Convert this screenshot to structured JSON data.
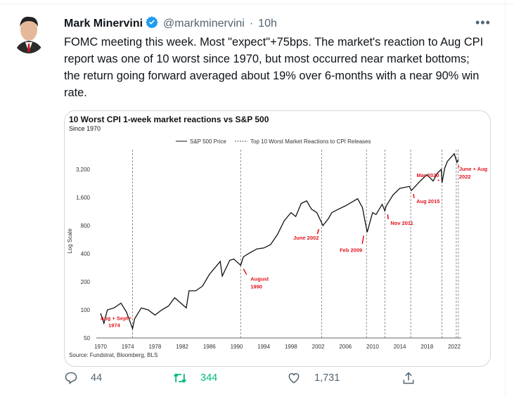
{
  "tweet": {
    "author_name": "Mark Minervini",
    "handle": "@markminervini",
    "separator": "·",
    "time": "10h",
    "more_icon": "ellipsis-icon",
    "text": "FOMC meeting this week. Most \"expect\"+75bps. The market's reaction to Aug CPI report was one of 10 worst since 1970, but most occurred near market bottoms; the return going forward averaged about 19% over 6-months with a near 90% win rate.",
    "verified": true
  },
  "actions": {
    "replies": "44",
    "retweets": "344",
    "likes": "1,731",
    "retweet_color": "#00ba7c"
  },
  "chart_data": {
    "type": "line",
    "title": "10 Worst CPI 1-week market reactions vs S&P 500",
    "subtitle": "Since 1970",
    "ylabel": "Log Scale",
    "source": "Source: Fundstrat, Bloomberg, BLS",
    "legend": [
      "S&P 500 Price",
      "Top 10 Worst Market Reactions to CPI Releases"
    ],
    "legend_position": "top",
    "x_ticks": [
      "1970",
      "1974",
      "1978",
      "1982",
      "1986",
      "1990",
      "1994",
      "1998",
      "2002",
      "2006",
      "2010",
      "2014",
      "2018",
      "2022"
    ],
    "y_ticks": [
      {
        "value": 50,
        "label": "50"
      },
      {
        "value": 100,
        "label": "100"
      },
      {
        "value": 200,
        "label": "200"
      },
      {
        "value": 400,
        "label": "400"
      },
      {
        "value": 800,
        "label": "800"
      },
      {
        "value": 1600,
        "label": "1,600"
      },
      {
        "value": 3200,
        "label": "3,200"
      }
    ],
    "xlim": [
      1970,
      2023.5
    ],
    "ylim": [
      50,
      5200
    ],
    "series": [
      {
        "name": "S&P 500 Price",
        "x": [
          1970,
          1970.5,
          1971,
          1972,
          1973,
          1973.8,
          1974.7,
          1975,
          1976,
          1977,
          1978,
          1979,
          1980,
          1980.9,
          1982.6,
          1983,
          1984,
          1985,
          1986,
          1987.6,
          1987.9,
          1989,
          1989.6,
          1990.6,
          1991,
          1992,
          1993,
          1994,
          1995,
          1996,
          1997,
          1998,
          1998.7,
          1999.5,
          2000.3,
          2001,
          2001.8,
          2002.7,
          2003.5,
          2004,
          2005,
          2006,
          2007.8,
          2008.5,
          2009.2,
          2010,
          2010.5,
          2011.4,
          2011.8,
          2012,
          2013,
          2014,
          2015.4,
          2015.7,
          2016,
          2017,
          2018,
          2018.9,
          2019.5,
          2020.1,
          2020.2,
          2020.6,
          2021,
          2022,
          2022.4,
          2022.6
        ],
        "y": [
          92,
          72,
          100,
          105,
          118,
          95,
          63,
          80,
          105,
          100,
          88,
          100,
          110,
          135,
          105,
          160,
          160,
          180,
          240,
          330,
          230,
          340,
          350,
          300,
          370,
          410,
          450,
          460,
          500,
          640,
          900,
          1100,
          1000,
          1380,
          1470,
          1200,
          1100,
          800,
          950,
          1100,
          1200,
          1300,
          1550,
          1250,
          680,
          1100,
          1050,
          1350,
          1150,
          1300,
          1700,
          2000,
          2100,
          1900,
          2000,
          2400,
          2800,
          2400,
          2900,
          3200,
          2300,
          3300,
          3900,
          4700,
          3800,
          4100
        ]
      }
    ],
    "events": [
      {
        "x": 1974.7,
        "label": [
          "Aug + Sept",
          "1974"
        ]
      },
      {
        "x": 1990.6,
        "label": [
          "August",
          "1990"
        ]
      },
      {
        "x": 2002.5,
        "label": [
          "June 2002"
        ]
      },
      {
        "x": 2009.1,
        "label": [
          "Feb 2009"
        ]
      },
      {
        "x": 2011.8,
        "label": [
          "Nov 2011"
        ]
      },
      {
        "x": 2015.6,
        "label": [
          "Aug 2015"
        ]
      },
      {
        "x": 2020.2,
        "label": [
          "Mar 2020"
        ]
      },
      {
        "x": 2022.3,
        "label": [
          "June + Aug",
          "2022"
        ]
      },
      {
        "x": 2022.6,
        "label": []
      }
    ]
  }
}
